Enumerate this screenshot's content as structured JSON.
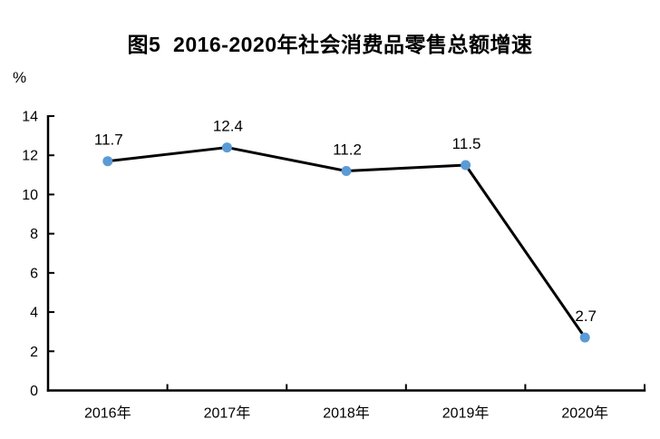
{
  "chart_data": {
    "type": "line",
    "title": "图5  2016-2020年社会消费品零售总额增速",
    "unit_label": "%",
    "categories": [
      "2016年",
      "2017年",
      "2018年",
      "2019年",
      "2020年"
    ],
    "series": [
      {
        "name": "社会消费品零售总额增速",
        "values": [
          11.7,
          12.4,
          11.2,
          11.5,
          2.7
        ],
        "data_labels": [
          "11.7",
          "12.4",
          "11.2",
          "11.5",
          "2.7"
        ]
      }
    ],
    "ylabel": "%",
    "xlabel": "",
    "ylim": [
      0,
      14
    ],
    "ytick_interval": 2,
    "yticks": [
      "0",
      "2",
      "4",
      "6",
      "8",
      "10",
      "12",
      "14"
    ],
    "grid": false,
    "legend_position": "none",
    "line_color": "#000000",
    "marker_color": "#5B9BD5",
    "axis_color": "#000000"
  }
}
